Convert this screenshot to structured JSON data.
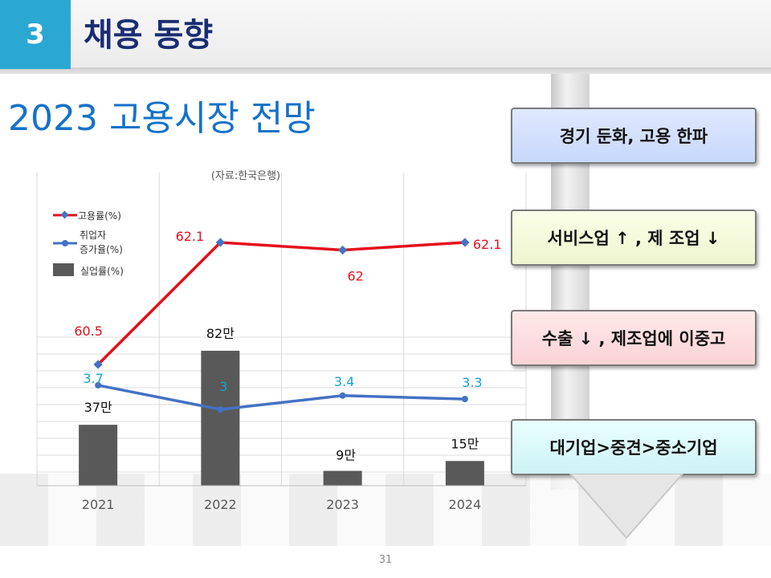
{
  "header": {
    "section_number": "3",
    "section_title": "채용 동향"
  },
  "page_title": "2023 고용시장 전망",
  "side_boxes": [
    "경기 둔화, 고용 한파",
    "서비스업 ↑ , 제 조업 ↓",
    "수출 ↓ , 제조업에 이중고",
    "대기업>중견>중소기업"
  ],
  "page_number": "31",
  "colors": {
    "header_accent": "#2aa8d2",
    "title_navy": "#1a2d73",
    "title_blue": "#1572c9",
    "series_employment": "#e3111b",
    "series_employed_growth": "#4472c4",
    "series_unemployment": "#595959",
    "label_cyan": "#12a5c8"
  },
  "chart_data": {
    "type": "bar+line",
    "source_note": "(자료:한국은행)",
    "categories": [
      "2021",
      "2022",
      "2023",
      "2024"
    ],
    "series": [
      {
        "name": "고용률(%)",
        "type": "line",
        "values": [
          60.5,
          62.1,
          62,
          62.1
        ],
        "labels": [
          "60.5",
          "62.1",
          "62",
          "62.1"
        ]
      },
      {
        "name": "취업자 증가율(%)",
        "type": "line",
        "values": [
          3.7,
          3,
          3.4,
          3.3
        ],
        "labels": [
          "3.7",
          "3",
          "3.4",
          "3.3"
        ]
      },
      {
        "name": "실업률(%)",
        "type": "bar",
        "values": [
          37,
          82,
          9,
          15
        ],
        "labels": [
          "37만",
          "82만",
          "9만",
          "15만"
        ]
      }
    ],
    "legend": [
      {
        "label": "고용률(%)",
        "label_lines": [
          "고용률(%)"
        ]
      },
      {
        "label": "취업자 증가율(%)",
        "label_lines": [
          "취업자",
          "증가율(%)"
        ]
      },
      {
        "label": "실업률(%)",
        "label_lines": [
          "실업률(%)"
        ]
      }
    ],
    "legend_position": "top-left",
    "grid": true
  }
}
